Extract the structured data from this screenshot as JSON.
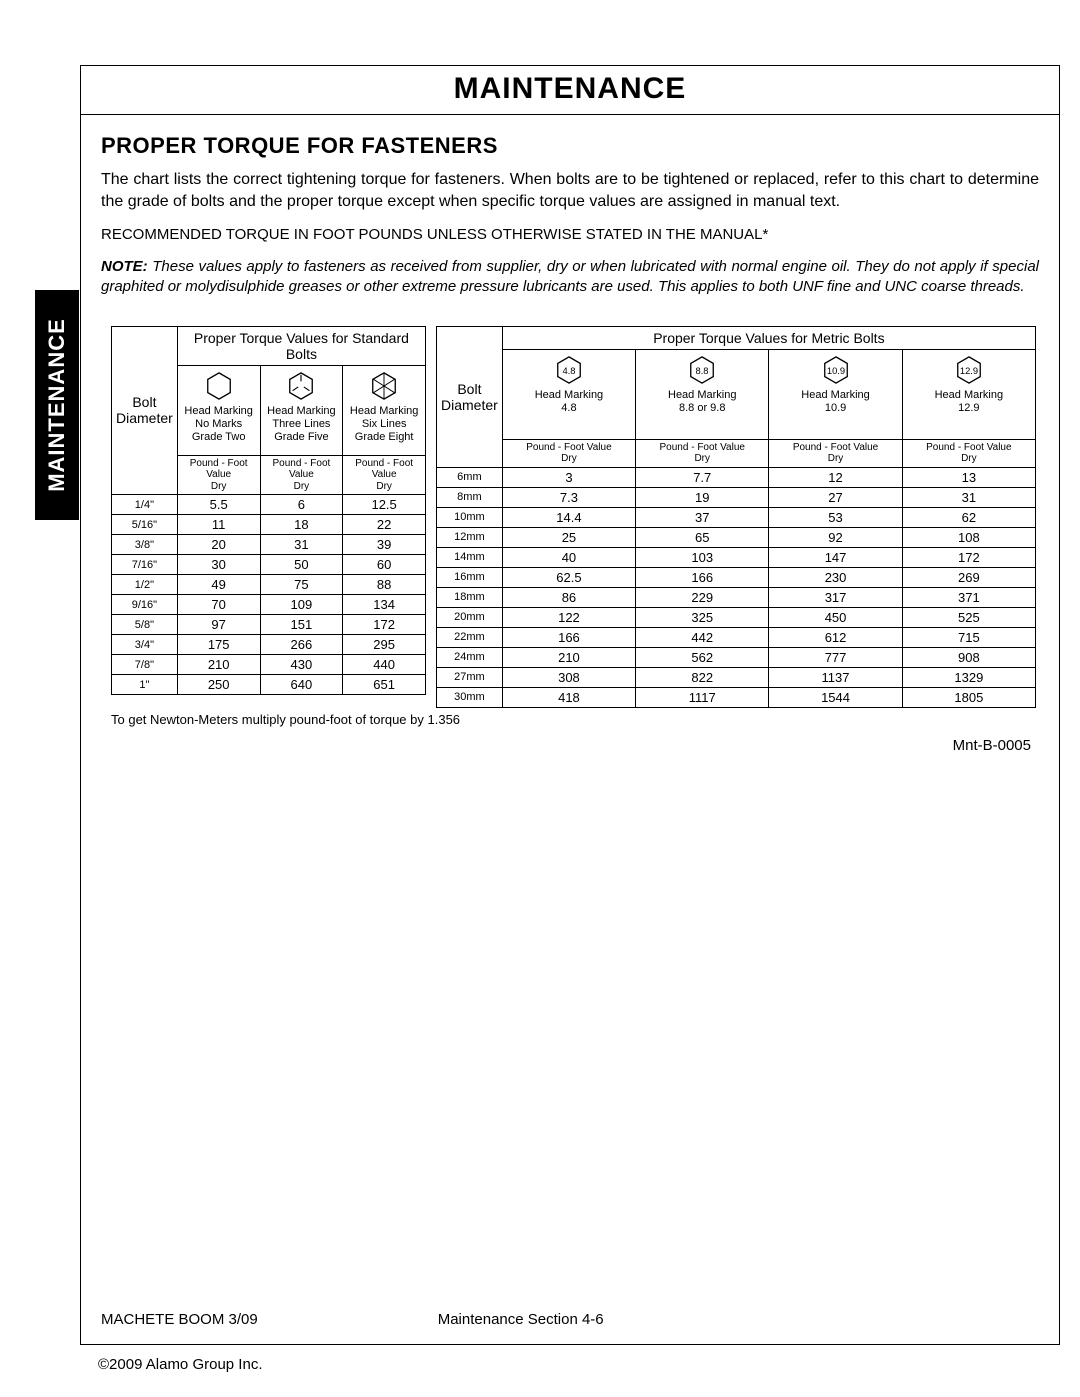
{
  "page_title": "MAINTENANCE",
  "side_tab": "MAINTENANCE",
  "section_heading": "PROPER TORQUE FOR FASTENERS",
  "intro_text": "The chart lists the correct tightening torque for fasteners.  When bolts are to be tightened or replaced, refer to this chart to determine the grade of bolts and the proper torque except when specific torque values are assigned in manual text.",
  "recommended": "RECOMMENDED TORQUE IN FOOT POUNDS  UNLESS OTHERWISE STATED IN THE MANUAL*",
  "note_label": "NOTE:",
  "note_text": "  These values apply to fasteners as received from supplier, dry or when lubricated with normal engine oil.  They do not apply if special graphited or molydisulphide greases or other extreme pressure lubricants are used.  This applies to both UNF fine and UNC coarse threads.",
  "standard_table": {
    "title": "Proper Torque Values for Standard Bolts",
    "diam_label": "Bolt\nDiameter",
    "heads": [
      {
        "hex_label": "",
        "text": "Head Marking\nNo Marks\nGrade Two"
      },
      {
        "hex_label": "",
        "text": "Head Marking\nThree Lines\nGrade Five"
      },
      {
        "hex_label": "",
        "text": "Head Marking\nSix Lines\nGrade Eight"
      }
    ],
    "sub_head": "Pound - Foot Value\nDry",
    "rows": [
      {
        "d": "1/4\"",
        "v": [
          "5.5",
          "6",
          "12.5"
        ]
      },
      {
        "d": "5/16\"",
        "v": [
          "11",
          "18",
          "22"
        ]
      },
      {
        "d": "3/8\"",
        "v": [
          "20",
          "31",
          "39"
        ]
      },
      {
        "d": "7/16\"",
        "v": [
          "30",
          "50",
          "60"
        ]
      },
      {
        "d": "1/2\"",
        "v": [
          "49",
          "75",
          "88"
        ]
      },
      {
        "d": "9/16\"",
        "v": [
          "70",
          "109",
          "134"
        ]
      },
      {
        "d": "5/8\"",
        "v": [
          "97",
          "151",
          "172"
        ]
      },
      {
        "d": "3/4\"",
        "v": [
          "175",
          "266",
          "295"
        ]
      },
      {
        "d": "7/8\"",
        "v": [
          "210",
          "430",
          "440"
        ]
      },
      {
        "d": "1\"",
        "v": [
          "250",
          "640",
          "651"
        ]
      }
    ]
  },
  "metric_table": {
    "title": "Proper Torque Values for Metric Bolts",
    "diam_label": "Bolt\nDiameter",
    "heads": [
      {
        "hex_label": "4.8",
        "text": "Head Marking\n4.8"
      },
      {
        "hex_label": "8.8",
        "text": "Head Marking\n8.8 or 9.8"
      },
      {
        "hex_label": "10.9",
        "text": "Head Marking\n10.9"
      },
      {
        "hex_label": "12.9",
        "text": "Head Marking\n12.9"
      }
    ],
    "sub_head": "Pound - Foot Value\nDry",
    "rows": [
      {
        "d": "6mm",
        "v": [
          "3",
          "7.7",
          "12",
          "13"
        ]
      },
      {
        "d": "8mm",
        "v": [
          "7.3",
          "19",
          "27",
          "31"
        ]
      },
      {
        "d": "10mm",
        "v": [
          "14.4",
          "37",
          "53",
          "62"
        ]
      },
      {
        "d": "12mm",
        "v": [
          "25",
          "65",
          "92",
          "108"
        ]
      },
      {
        "d": "14mm",
        "v": [
          "40",
          "103",
          "147",
          "172"
        ]
      },
      {
        "d": "16mm",
        "v": [
          "62.5",
          "166",
          "230",
          "269"
        ]
      },
      {
        "d": "18mm",
        "v": [
          "86",
          "229",
          "317",
          "371"
        ]
      },
      {
        "d": "20mm",
        "v": [
          "122",
          "325",
          "450",
          "525"
        ]
      },
      {
        "d": "22mm",
        "v": [
          "166",
          "442",
          "612",
          "715"
        ]
      },
      {
        "d": "24mm",
        "v": [
          "210",
          "562",
          "777",
          "908"
        ]
      },
      {
        "d": "27mm",
        "v": [
          "308",
          "822",
          "1137",
          "1329"
        ]
      },
      {
        "d": "30mm",
        "v": [
          "418",
          "1117",
          "1544",
          "1805"
        ]
      }
    ]
  },
  "conversion_note": "To get Newton-Meters multiply pound-foot of torque by 1.356",
  "figure_id": "Mnt-B-0005",
  "footer_left": "MACHETE BOOM 3/09",
  "footer_center": "Maintenance Section 4-6",
  "copyright": "©2009 Alamo Group Inc.",
  "colors": {
    "border": "#000000",
    "text": "#000000",
    "tab_bg": "#000000",
    "tab_text": "#ffffff",
    "page_bg": "#ffffff"
  }
}
